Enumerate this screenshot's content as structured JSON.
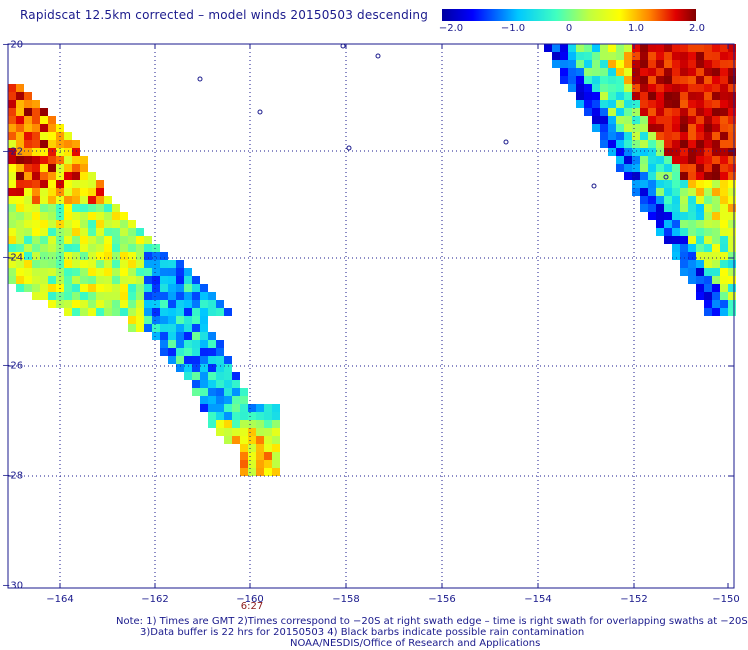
{
  "title": "Rapidscat 12.5km corrected – model winds 20150503 descending",
  "colorbar": {
    "labels": [
      "−2.0",
      "−1.0",
      "0",
      "1.0",
      "2.0"
    ],
    "range": [
      -2.0,
      2.0
    ]
  },
  "axes": {
    "x_ticks": [
      "−164",
      "−162",
      "−160",
      "−158",
      "−156",
      "−154",
      "−152",
      "−150"
    ],
    "y_ticks": [
      "−20",
      "−22",
      "−24",
      "−26",
      "−28",
      "−30"
    ],
    "lon_range": [
      -165,
      -150
    ],
    "lat_range": [
      -30,
      -20
    ]
  },
  "swath_time": "6:27",
  "notes": {
    "line1": "Note: 1) Times are GMT 2)Times correspond to −20S at right swath edge – time is right swath for overlapping swaths at −20S",
    "line2": "3)Data buffer is 22 hrs for 20150503 4) Black barbs indicate possible rain contamination",
    "line3": "NOAA/NESDIS/Office of Research and Applications"
  }
}
